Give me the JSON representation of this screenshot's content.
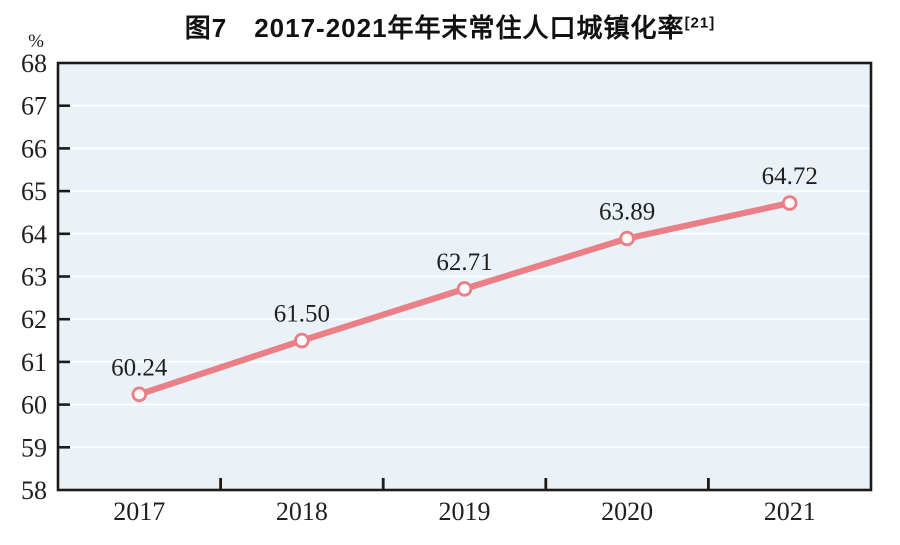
{
  "title": {
    "text": "图7　2017-2021年年末常住人口城镇化率",
    "superscript": "[21]"
  },
  "chart_data": {
    "type": "line",
    "title": "图7 2017-2021年年末常住人口城镇化率[21]",
    "categories": [
      "2017",
      "2018",
      "2019",
      "2020",
      "2021"
    ],
    "series": [
      {
        "name": "年末常住人口城镇化率",
        "values": [
          60.24,
          61.5,
          62.71,
          63.89,
          64.72
        ],
        "labels": [
          "60.24",
          "61.50",
          "62.71",
          "63.89",
          "64.72"
        ]
      }
    ],
    "unit_label": "%",
    "xlabel": "",
    "ylabel": "%",
    "ylim": [
      58,
      68
    ],
    "ytick_step": 1,
    "grid": true,
    "legend": "none",
    "colors": {
      "line": "#ea7f88",
      "marker_fill": "#fffafa",
      "plot_bg": "#eaf2f7",
      "gridline": "#fbfdfe",
      "axis": "#1b1b1b",
      "text": "#1f1f1f"
    }
  }
}
